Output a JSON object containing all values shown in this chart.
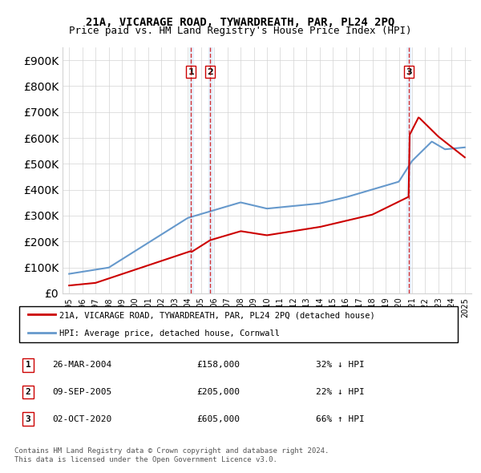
{
  "title": "21A, VICARAGE ROAD, TYWARDREATH, PAR, PL24 2PQ",
  "subtitle": "Price paid vs. HM Land Registry's House Price Index (HPI)",
  "legend_line1": "21A, VICARAGE ROAD, TYWARDREATH, PAR, PL24 2PQ (detached house)",
  "legend_line2": "HPI: Average price, detached house, Cornwall",
  "footer1": "Contains HM Land Registry data © Crown copyright and database right 2024.",
  "footer2": "This data is licensed under the Open Government Licence v3.0.",
  "transactions": [
    {
      "num": 1,
      "date": "26-MAR-2004",
      "price": "£158,000",
      "pct": "32% ↓ HPI",
      "year": 2004.23
    },
    {
      "num": 2,
      "date": "09-SEP-2005",
      "price": "£205,000",
      "pct": "22% ↓ HPI",
      "year": 2005.69
    },
    {
      "num": 3,
      "date": "02-OCT-2020",
      "price": "£605,000",
      "pct": "66% ↑ HPI",
      "year": 2020.75
    }
  ],
  "hpi_color": "#6699cc",
  "price_color": "#cc0000",
  "vline_color": "#cc0000",
  "vline_alpha": 0.5,
  "bg_fill_color": "#ddeeff",
  "bg_fill_alpha": 0.3,
  "ylim": [
    0,
    950000
  ],
  "xlim_start": 1994.5,
  "xlim_end": 2025.5
}
